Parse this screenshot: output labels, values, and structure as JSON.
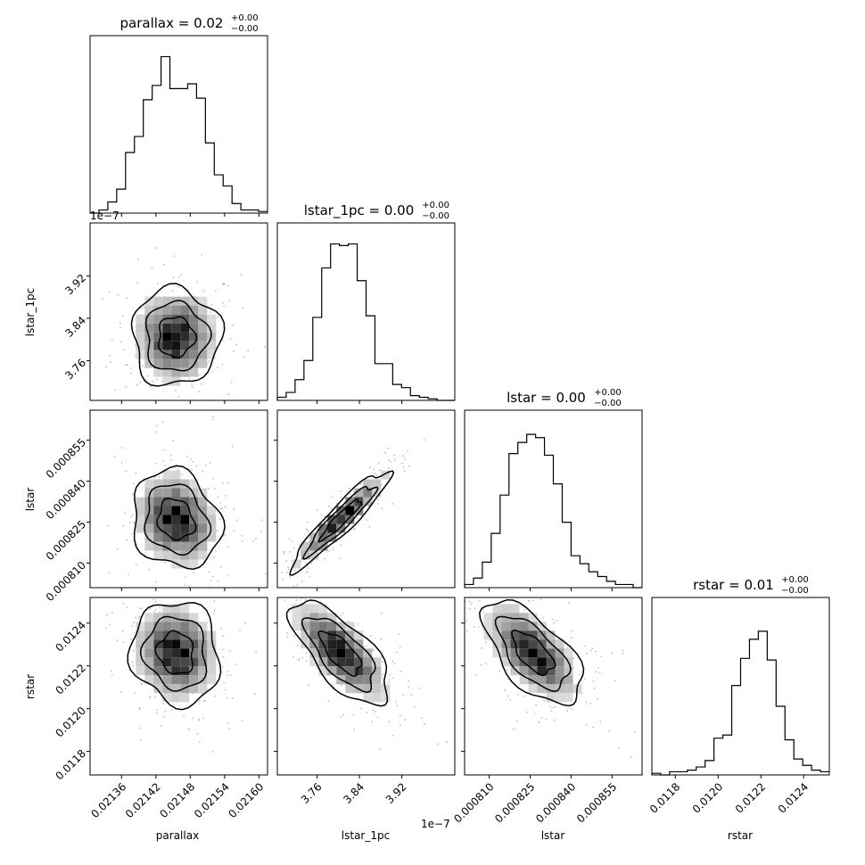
{
  "chart_data": {
    "type": "corner",
    "parameters": [
      "parallax",
      "lstar_1pc",
      "lstar",
      "rstar"
    ],
    "titles": [
      {
        "main": "parallax = 0.02",
        "plus": "+0.00",
        "minus": "−0.00"
      },
      {
        "main": "lstar_1pc = 0.00",
        "plus": "+0.00",
        "minus": "−0.00"
      },
      {
        "main": "lstar = 0.00",
        "plus": "+0.00",
        "minus": "−0.00"
      },
      {
        "main": "rstar = 0.01",
        "plus": "+0.00",
        "minus": "−0.00"
      }
    ],
    "axis_labels": [
      "parallax",
      "lstar_1pc",
      "lstar",
      "rstar"
    ],
    "x_ticks": [
      [
        "0.02136",
        "0.02142",
        "0.02148",
        "0.02154",
        "0.02160"
      ],
      [
        "3.76",
        "3.84",
        "3.92"
      ],
      [
        "0.000810",
        "0.000825",
        "0.000840",
        "0.000855"
      ],
      [
        "0.0118",
        "0.0120",
        "0.0122",
        "0.0124"
      ]
    ],
    "y_ticks": {
      "lstar_1pc": [
        "3.76",
        "3.84",
        "3.92"
      ],
      "lstar": [
        "0.000810",
        "0.000825",
        "0.000840",
        "0.000855"
      ],
      "rstar": [
        "0.0118",
        "0.0120",
        "0.0122",
        "0.0124"
      ]
    },
    "offset_label": "1e−7",
    "offset_label_top": "1e−7",
    "ranges": [
      [
        0.021305,
        0.021615
      ],
      [
        3.685,
        4.02
      ],
      [
        0.000801,
        0.000866
      ],
      [
        0.01169,
        0.01252
      ]
    ],
    "tick_values": [
      [
        0.02136,
        0.02142,
        0.02148,
        0.02154,
        0.0216
      ],
      [
        3.76,
        3.84,
        3.92
      ],
      [
        0.00081,
        0.000825,
        0.00084,
        0.000855
      ],
      [
        0.0118,
        0.012,
        0.0122,
        0.0124
      ]
    ],
    "histograms": [
      [
        0,
        0.02,
        0.07,
        0.15,
        0.38,
        0.48,
        0.71,
        0.8,
        0.98,
        0.78,
        0.78,
        0.81,
        0.72,
        0.44,
        0.24,
        0.17,
        0.06,
        0.02,
        0.02,
        0.01
      ],
      [
        0.02,
        0.05,
        0.13,
        0.25,
        0.52,
        0.83,
        0.98,
        0.97,
        0.98,
        0.75,
        0.53,
        0.23,
        0.23,
        0.1,
        0.08,
        0.03,
        0.02,
        0.01,
        0.0,
        0.0
      ],
      [
        0.02,
        0.06,
        0.16,
        0.34,
        0.58,
        0.84,
        0.91,
        0.96,
        0.94,
        0.83,
        0.65,
        0.41,
        0.2,
        0.15,
        0.1,
        0.07,
        0.04,
        0.02,
        0.02,
        0.0
      ],
      [
        0.01,
        0.0,
        0.02,
        0.02,
        0.03,
        0.05,
        0.09,
        0.23,
        0.25,
        0.56,
        0.73,
        0.85,
        0.9,
        0.72,
        0.43,
        0.22,
        0.1,
        0.06,
        0.03,
        0.02
      ]
    ],
    "pairs": [
      {
        "x": 0,
        "y": 1,
        "cx": 0.021455,
        "cy": 3.805,
        "sx": 3.5e-05,
        "sy": 0.042,
        "rho": 0.0
      },
      {
        "x": 0,
        "y": 2,
        "cx": 0.021455,
        "cy": 0.000826,
        "sx": 3.5e-05,
        "sy": 8.2e-06,
        "rho": -0.15
      },
      {
        "x": 1,
        "y": 2,
        "cx": 3.805,
        "cy": 0.000826,
        "sx": 0.042,
        "sy": 8.2e-06,
        "rho": 0.93
      },
      {
        "x": 0,
        "y": 3,
        "cx": 0.021455,
        "cy": 0.01226,
        "sx": 3.5e-05,
        "sy": 0.00011,
        "rho": -0.1
      },
      {
        "x": 1,
        "y": 3,
        "cx": 3.805,
        "cy": 0.01226,
        "sx": 0.042,
        "sy": 0.00011,
        "rho": -0.7
      },
      {
        "x": 2,
        "y": 3,
        "cx": 0.000826,
        "cy": 0.01226,
        "sx": 8.2e-06,
        "sy": 0.00011,
        "rho": -0.62
      }
    ]
  }
}
